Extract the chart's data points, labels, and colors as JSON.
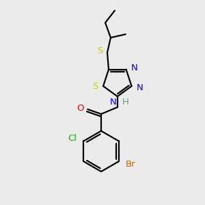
{
  "background_color": "#ebebeb",
  "bond_color": "#000000",
  "element_colors": {
    "S": "#cccc00",
    "N": "#0000ee",
    "O": "#ff0000",
    "Cl": "#00bb00",
    "Br": "#cc6600",
    "C": "#000000",
    "H": "#6a9a9a"
  },
  "lw": 1.6,
  "fontsize": 9.5
}
